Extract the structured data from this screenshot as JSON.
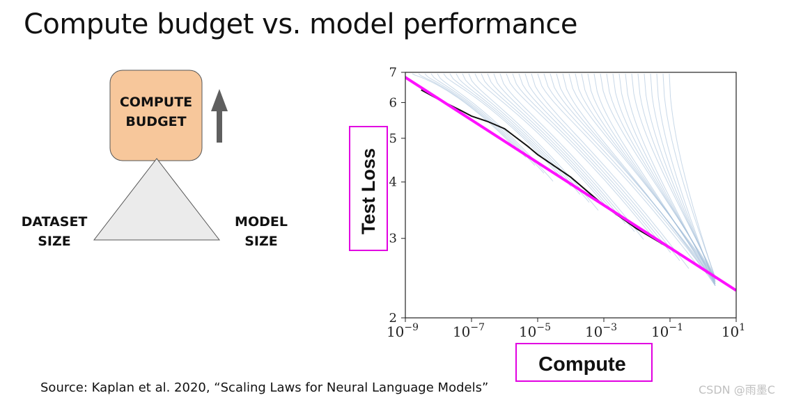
{
  "slide": {
    "title": "Compute budget vs. model performance",
    "source": "Source: Kaplan et al. 2020, “Scaling Laws for Neural Language Models”",
    "watermark": "CSDN @雨墨C"
  },
  "diagram": {
    "box_line1": "COMPUTE",
    "box_line2": "BUDGET",
    "left_line1": "DATASET",
    "left_line2": "SIZE",
    "right_line1": "MODEL",
    "right_line2": "SIZE",
    "box_color": "#f7c79b",
    "triangle_color": "#ebebeb",
    "arrow_color": "#5f5f5f"
  },
  "chart_data": {
    "type": "line",
    "xlabel": "Compute",
    "ylabel": "Test Loss",
    "x_scale": "log",
    "y_scale": "log",
    "xlim": [
      1e-09,
      10
    ],
    "ylim": [
      2,
      7
    ],
    "x_ticks": [
      {
        "value": 1e-09,
        "label": "10",
        "exp": "−9"
      },
      {
        "value": 1e-07,
        "label": "10",
        "exp": "−7"
      },
      {
        "value": 1e-05,
        "label": "10",
        "exp": "−5"
      },
      {
        "value": 0.001,
        "label": "10",
        "exp": "−3"
      },
      {
        "value": 0.1,
        "label": "10",
        "exp": "−1"
      },
      {
        "value": 10,
        "label": "10",
        "exp": "1"
      }
    ],
    "y_ticks": [
      {
        "value": 2,
        "label": "2"
      },
      {
        "value": 3,
        "label": "3"
      },
      {
        "value": 4,
        "label": "4"
      },
      {
        "value": 5,
        "label": "5"
      },
      {
        "value": 6,
        "label": "6"
      },
      {
        "value": 7,
        "label": "7"
      }
    ],
    "trend_line": {
      "x": [
        5e-10,
        10
      ],
      "y": [
        7.05,
        2.3
      ],
      "color": "#ff10ff"
    },
    "frontier": {
      "x": [
        3e-09,
        1e-08,
        5e-08,
        1e-07,
        3e-07,
        1e-06,
        2e-06,
        5e-06,
        1e-05,
        0.0001,
        0.001,
        0.01,
        0.1
      ],
      "y": [
        6.4,
        6.1,
        5.75,
        5.6,
        5.45,
        5.25,
        5.05,
        4.8,
        4.6,
        4.1,
        3.55,
        3.15,
        2.85
      ],
      "color": "#111111"
    },
    "training_curves_color": "#9ab8d6",
    "annotation_box_color": "#e100e1"
  }
}
